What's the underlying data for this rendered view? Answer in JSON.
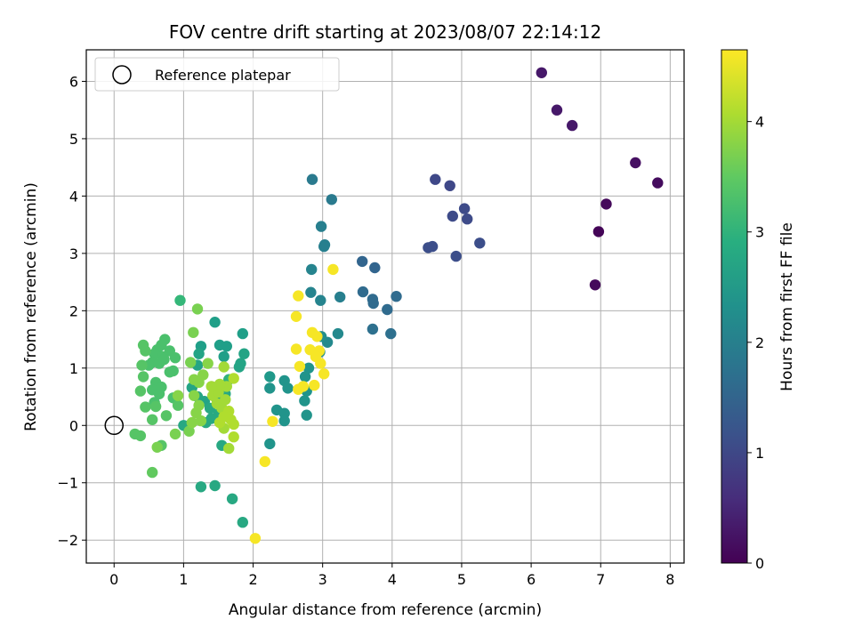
{
  "chart_data": {
    "type": "scatter",
    "title": "FOV centre drift starting at 2023/08/07 22:14:12",
    "xlabel": "Angular distance from reference (arcmin)",
    "ylabel": "Rotation from reference (arcmin)",
    "xlim": [
      -0.4,
      8.2
    ],
    "ylim": [
      -2.4,
      6.55
    ],
    "xticks": [
      0,
      1,
      2,
      3,
      4,
      5,
      6,
      7,
      8
    ],
    "xtick_labels": [
      "0",
      "1",
      "2",
      "3",
      "4",
      "5",
      "6",
      "7",
      "8"
    ],
    "yticks": [
      -2,
      -1,
      0,
      1,
      2,
      3,
      4,
      5,
      6
    ],
    "ytick_labels": [
      "−2",
      "−1",
      "0",
      "1",
      "2",
      "3",
      "4",
      "5",
      "6"
    ],
    "grid": true,
    "legend": {
      "position": "top-left",
      "entries": [
        "Reference platepar"
      ]
    },
    "reference_point": {
      "x": 0,
      "y": 0
    },
    "colorbar": {
      "label": "Hours from first FF file",
      "colormap": "viridis",
      "range": [
        0,
        4.65
      ],
      "ticks": [
        0,
        1,
        2,
        3,
        4
      ],
      "tick_labels": [
        "0",
        "1",
        "2",
        "3",
        "4"
      ]
    },
    "points": [
      {
        "x": 6.15,
        "y": 6.15,
        "c": 0.3
      },
      {
        "x": 6.37,
        "y": 5.5,
        "c": 0.3
      },
      {
        "x": 6.59,
        "y": 5.23,
        "c": 0.3
      },
      {
        "x": 7.5,
        "y": 4.58,
        "c": 0.2
      },
      {
        "x": 7.82,
        "y": 4.23,
        "c": 0.15
      },
      {
        "x": 7.08,
        "y": 3.86,
        "c": 0.1
      },
      {
        "x": 6.97,
        "y": 3.38,
        "c": 0.05
      },
      {
        "x": 6.92,
        "y": 2.45,
        "c": 0.1
      },
      {
        "x": 4.62,
        "y": 4.29,
        "c": 1.0
      },
      {
        "x": 4.83,
        "y": 4.18,
        "c": 1.0
      },
      {
        "x": 5.04,
        "y": 3.78,
        "c": 1.05
      },
      {
        "x": 4.87,
        "y": 3.65,
        "c": 1.05
      },
      {
        "x": 5.08,
        "y": 3.6,
        "c": 1.05
      },
      {
        "x": 4.52,
        "y": 3.1,
        "c": 1.1
      },
      {
        "x": 4.58,
        "y": 3.12,
        "c": 1.1
      },
      {
        "x": 5.26,
        "y": 3.18,
        "c": 1.1
      },
      {
        "x": 4.92,
        "y": 2.95,
        "c": 1.1
      },
      {
        "x": 3.57,
        "y": 2.86,
        "c": 1.5
      },
      {
        "x": 3.75,
        "y": 2.75,
        "c": 1.5
      },
      {
        "x": 3.58,
        "y": 2.33,
        "c": 1.6
      },
      {
        "x": 3.72,
        "y": 2.2,
        "c": 1.6
      },
      {
        "x": 3.73,
        "y": 2.13,
        "c": 1.6
      },
      {
        "x": 4.06,
        "y": 2.25,
        "c": 1.6
      },
      {
        "x": 3.93,
        "y": 2.02,
        "c": 1.6
      },
      {
        "x": 3.72,
        "y": 1.68,
        "c": 1.7
      },
      {
        "x": 3.98,
        "y": 1.6,
        "c": 1.7
      },
      {
        "x": 2.85,
        "y": 4.29,
        "c": 1.9
      },
      {
        "x": 3.13,
        "y": 3.94,
        "c": 1.9
      },
      {
        "x": 2.98,
        "y": 3.47,
        "c": 2.0
      },
      {
        "x": 3.03,
        "y": 3.15,
        "c": 2.0
      },
      {
        "x": 3.02,
        "y": 3.12,
        "c": 2.0
      },
      {
        "x": 2.84,
        "y": 2.72,
        "c": 2.1
      },
      {
        "x": 2.83,
        "y": 2.32,
        "c": 2.1
      },
      {
        "x": 2.97,
        "y": 2.18,
        "c": 2.1
      },
      {
        "x": 3.25,
        "y": 2.24,
        "c": 2.0
      },
      {
        "x": 3.22,
        "y": 1.6,
        "c": 2.2
      },
      {
        "x": 3.07,
        "y": 1.45,
        "c": 2.2
      },
      {
        "x": 2.98,
        "y": 1.55,
        "c": 2.3
      },
      {
        "x": 2.96,
        "y": 1.28,
        "c": 2.3
      },
      {
        "x": 2.8,
        "y": 1.0,
        "c": 2.4
      },
      {
        "x": 2.75,
        "y": 0.85,
        "c": 2.4
      },
      {
        "x": 2.77,
        "y": 0.6,
        "c": 2.4
      },
      {
        "x": 2.74,
        "y": 0.43,
        "c": 2.4
      },
      {
        "x": 2.77,
        "y": 0.18,
        "c": 2.4
      },
      {
        "x": 2.45,
        "y": 0.78,
        "c": 2.4
      },
      {
        "x": 2.5,
        "y": 0.65,
        "c": 2.4
      },
      {
        "x": 2.24,
        "y": 0.65,
        "c": 2.4
      },
      {
        "x": 2.34,
        "y": 0.27,
        "c": 2.4
      },
      {
        "x": 2.45,
        "y": 0.21,
        "c": 2.4
      },
      {
        "x": 2.45,
        "y": 0.08,
        "c": 2.4
      },
      {
        "x": 2.24,
        "y": -0.32,
        "c": 2.4
      },
      {
        "x": 2.24,
        "y": 0.85,
        "c": 2.5
      },
      {
        "x": 1.45,
        "y": 1.8,
        "c": 2.6
      },
      {
        "x": 1.25,
        "y": 1.38,
        "c": 2.6
      },
      {
        "x": 1.52,
        "y": 1.4,
        "c": 2.6
      },
      {
        "x": 1.62,
        "y": 1.38,
        "c": 2.6
      },
      {
        "x": 1.58,
        "y": 1.2,
        "c": 2.6
      },
      {
        "x": 1.85,
        "y": 1.6,
        "c": 2.6
      },
      {
        "x": 1.87,
        "y": 1.25,
        "c": 2.7
      },
      {
        "x": 1.82,
        "y": 1.08,
        "c": 2.7
      },
      {
        "x": 1.8,
        "y": 1.02,
        "c": 2.7
      },
      {
        "x": 1.2,
        "y": 1.05,
        "c": 2.7
      },
      {
        "x": 1.22,
        "y": 1.25,
        "c": 2.7
      },
      {
        "x": 1.12,
        "y": 0.66,
        "c": 2.7
      },
      {
        "x": 1.2,
        "y": 0.5,
        "c": 2.7
      },
      {
        "x": 1.3,
        "y": 0.42,
        "c": 2.7
      },
      {
        "x": 1.38,
        "y": 0.3,
        "c": 2.8
      },
      {
        "x": 1.5,
        "y": 0.2,
        "c": 2.8
      },
      {
        "x": 1.4,
        "y": 0.12,
        "c": 2.8
      },
      {
        "x": 1.32,
        "y": 0.05,
        "c": 2.8
      },
      {
        "x": 1.0,
        "y": 0.0,
        "c": 2.8
      },
      {
        "x": 1.55,
        "y": -0.35,
        "c": 2.8
      },
      {
        "x": 1.45,
        "y": -1.05,
        "c": 2.8
      },
      {
        "x": 1.25,
        "y": -1.07,
        "c": 2.8
      },
      {
        "x": 1.7,
        "y": -1.28,
        "c": 2.8
      },
      {
        "x": 1.85,
        "y": -1.69,
        "c": 2.8
      },
      {
        "x": 1.6,
        "y": 0.55,
        "c": 2.8
      },
      {
        "x": 1.48,
        "y": 0.45,
        "c": 2.8
      },
      {
        "x": 0.95,
        "y": 2.18,
        "c": 3.1
      },
      {
        "x": 1.65,
        "y": 0.8,
        "c": 3.0
      },
      {
        "x": 1.55,
        "y": 0.65,
        "c": 3.0
      },
      {
        "x": 0.73,
        "y": 1.5,
        "c": 3.3
      },
      {
        "x": 0.68,
        "y": 1.4,
        "c": 3.3
      },
      {
        "x": 0.62,
        "y": 1.32,
        "c": 3.3
      },
      {
        "x": 0.58,
        "y": 1.25,
        "c": 3.3
      },
      {
        "x": 0.8,
        "y": 1.3,
        "c": 3.3
      },
      {
        "x": 0.88,
        "y": 1.18,
        "c": 3.3
      },
      {
        "x": 0.7,
        "y": 1.2,
        "c": 3.3
      },
      {
        "x": 0.55,
        "y": 1.1,
        "c": 3.3
      },
      {
        "x": 0.5,
        "y": 1.05,
        "c": 3.3
      },
      {
        "x": 0.65,
        "y": 1.08,
        "c": 3.3
      },
      {
        "x": 0.72,
        "y": 1.15,
        "c": 3.3
      },
      {
        "x": 0.85,
        "y": 0.95,
        "c": 3.3
      },
      {
        "x": 0.8,
        "y": 0.93,
        "c": 3.3
      },
      {
        "x": 0.6,
        "y": 0.75,
        "c": 3.3
      },
      {
        "x": 0.68,
        "y": 0.67,
        "c": 3.3
      },
      {
        "x": 0.55,
        "y": 0.62,
        "c": 3.3
      },
      {
        "x": 0.65,
        "y": 0.55,
        "c": 3.3
      },
      {
        "x": 0.58,
        "y": 0.4,
        "c": 3.3
      },
      {
        "x": 0.85,
        "y": 0.48,
        "c": 3.3
      },
      {
        "x": 0.92,
        "y": 0.35,
        "c": 3.4
      },
      {
        "x": 0.75,
        "y": 0.17,
        "c": 3.4
      },
      {
        "x": 0.6,
        "y": 0.33,
        "c": 3.4
      },
      {
        "x": 0.55,
        "y": 0.1,
        "c": 3.4
      },
      {
        "x": 0.45,
        "y": 0.32,
        "c": 3.4
      },
      {
        "x": 0.38,
        "y": 0.6,
        "c": 3.4
      },
      {
        "x": 0.42,
        "y": 0.85,
        "c": 3.4
      },
      {
        "x": 0.4,
        "y": 1.05,
        "c": 3.4
      },
      {
        "x": 0.42,
        "y": 1.4,
        "c": 3.4
      },
      {
        "x": 0.45,
        "y": 1.3,
        "c": 3.4
      },
      {
        "x": 0.3,
        "y": -0.15,
        "c": 3.4
      },
      {
        "x": 0.38,
        "y": -0.18,
        "c": 3.4
      },
      {
        "x": 0.68,
        "y": -0.35,
        "c": 3.4
      },
      {
        "x": 0.55,
        "y": -0.82,
        "c": 3.5
      },
      {
        "x": 1.2,
        "y": 2.03,
        "c": 3.7
      },
      {
        "x": 1.14,
        "y": 1.62,
        "c": 3.7
      },
      {
        "x": 1.1,
        "y": 1.1,
        "c": 3.7
      },
      {
        "x": 0.88,
        "y": -0.15,
        "c": 3.7
      },
      {
        "x": 0.62,
        "y": -0.38,
        "c": 3.7
      },
      {
        "x": 1.08,
        "y": -0.1,
        "c": 3.7
      },
      {
        "x": 1.12,
        "y": 0.05,
        "c": 3.8
      },
      {
        "x": 1.18,
        "y": 0.22,
        "c": 3.8
      },
      {
        "x": 1.22,
        "y": 0.35,
        "c": 3.8
      },
      {
        "x": 1.25,
        "y": 0.08,
        "c": 3.8
      },
      {
        "x": 1.15,
        "y": 0.52,
        "c": 3.8
      },
      {
        "x": 1.22,
        "y": 0.75,
        "c": 3.8
      },
      {
        "x": 1.28,
        "y": 0.88,
        "c": 3.8
      },
      {
        "x": 1.15,
        "y": 0.8,
        "c": 3.8
      },
      {
        "x": 1.35,
        "y": 1.08,
        "c": 3.8
      },
      {
        "x": 0.92,
        "y": 0.52,
        "c": 3.8
      },
      {
        "x": 1.58,
        "y": -0.05,
        "c": 4.0
      },
      {
        "x": 1.65,
        "y": -0.4,
        "c": 4.0
      },
      {
        "x": 1.42,
        "y": 0.52,
        "c": 4.0
      },
      {
        "x": 1.48,
        "y": 0.38,
        "c": 4.0
      },
      {
        "x": 1.55,
        "y": 0.3,
        "c": 4.0
      },
      {
        "x": 1.6,
        "y": 0.45,
        "c": 4.0
      },
      {
        "x": 1.5,
        "y": 0.58,
        "c": 4.0
      },
      {
        "x": 1.62,
        "y": 0.68,
        "c": 4.0
      },
      {
        "x": 1.52,
        "y": 0.72,
        "c": 4.0
      },
      {
        "x": 1.4,
        "y": 0.68,
        "c": 4.0
      },
      {
        "x": 1.58,
        "y": 1.02,
        "c": 4.0
      },
      {
        "x": 1.65,
        "y": 0.25,
        "c": 4.1
      },
      {
        "x": 1.68,
        "y": 0.1,
        "c": 4.1
      },
      {
        "x": 1.72,
        "y": 0.02,
        "c": 4.1
      },
      {
        "x": 1.72,
        "y": -0.2,
        "c": 4.1
      },
      {
        "x": 1.58,
        "y": 0.15,
        "c": 4.1
      },
      {
        "x": 1.52,
        "y": 0.05,
        "c": 4.1
      },
      {
        "x": 1.72,
        "y": 0.82,
        "c": 4.1
      },
      {
        "x": 2.65,
        "y": 2.26,
        "c": 4.6
      },
      {
        "x": 3.15,
        "y": 2.72,
        "c": 4.6
      },
      {
        "x": 2.62,
        "y": 1.9,
        "c": 4.6
      },
      {
        "x": 2.85,
        "y": 1.62,
        "c": 4.6
      },
      {
        "x": 2.92,
        "y": 1.55,
        "c": 4.6
      },
      {
        "x": 2.62,
        "y": 1.33,
        "c": 4.6
      },
      {
        "x": 2.82,
        "y": 1.32,
        "c": 4.6
      },
      {
        "x": 2.95,
        "y": 1.3,
        "c": 4.6
      },
      {
        "x": 2.9,
        "y": 1.2,
        "c": 4.6
      },
      {
        "x": 2.97,
        "y": 1.08,
        "c": 4.6
      },
      {
        "x": 2.67,
        "y": 1.03,
        "c": 4.6
      },
      {
        "x": 3.02,
        "y": 0.9,
        "c": 4.6
      },
      {
        "x": 2.65,
        "y": 0.63,
        "c": 4.6
      },
      {
        "x": 2.72,
        "y": 0.68,
        "c": 4.6
      },
      {
        "x": 2.88,
        "y": 0.7,
        "c": 4.6
      },
      {
        "x": 2.28,
        "y": 0.07,
        "c": 4.6
      },
      {
        "x": 2.17,
        "y": -0.63,
        "c": 4.6
      },
      {
        "x": 2.03,
        "y": -1.97,
        "c": 4.6
      }
    ]
  }
}
